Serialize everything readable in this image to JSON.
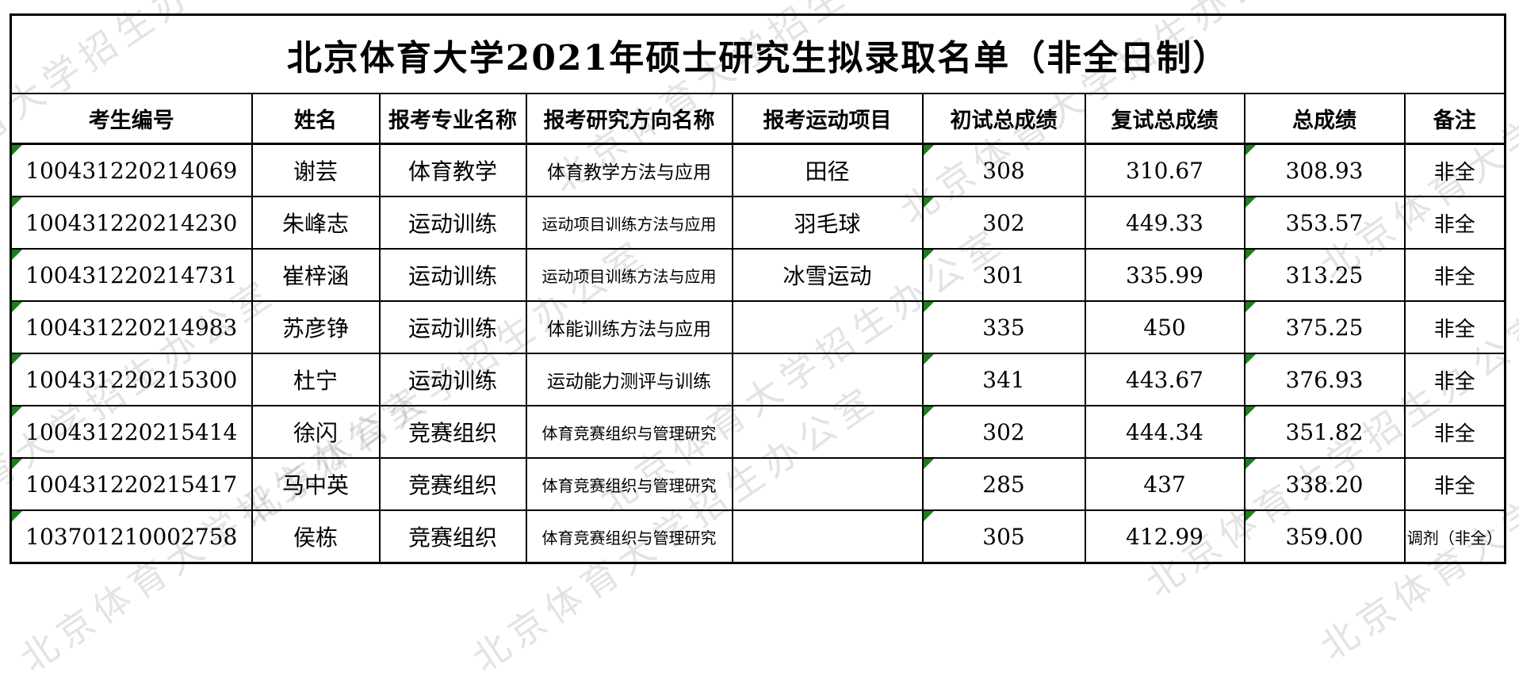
{
  "title": "北京体育大学2021年硕士研究生拟录取名单（非全日制）",
  "watermark_text": "北京体育大学招生办公室",
  "colors": {
    "flag_green": "#1f7d1f",
    "border_black": "#000000",
    "watermark_gray": "rgba(80,80,80,0.16)"
  },
  "table": {
    "columns": [
      "考生编号",
      "姓名",
      "报考专业名称",
      "报考研究方向名称",
      "报考运动项目",
      "初试总成绩",
      "复试总成绩",
      "总成绩",
      "备注"
    ],
    "flag_columns": [
      0,
      5,
      7
    ],
    "rows": [
      [
        "100431220214069",
        "谢芸",
        "体育教学",
        "体育教学方法与应用",
        "田径",
        "308",
        "310.67",
        "308.93",
        "非全"
      ],
      [
        "100431220214230",
        "朱峰志",
        "运动训练",
        "运动项目训练方法与应用",
        "羽毛球",
        "302",
        "449.33",
        "353.57",
        "非全"
      ],
      [
        "100431220214731",
        "崔梓涵",
        "运动训练",
        "运动项目训练方法与应用",
        "冰雪运动",
        "301",
        "335.99",
        "313.25",
        "非全"
      ],
      [
        "100431220214983",
        "苏彦铮",
        "运动训练",
        "体能训练方法与应用",
        "",
        "335",
        "450",
        "375.25",
        "非全"
      ],
      [
        "100431220215300",
        "杜宁",
        "运动训练",
        "运动能力测评与训练",
        "",
        "341",
        "443.67",
        "376.93",
        "非全"
      ],
      [
        "100431220215414",
        "徐闪",
        "竞赛组织",
        "体育竞赛组织与管理研究",
        "",
        "302",
        "444.34",
        "351.82",
        "非全"
      ],
      [
        "100431220215417",
        "马中英",
        "竞赛组织",
        "体育竞赛组织与管理研究",
        "",
        "285",
        "437",
        "338.20",
        "非全"
      ],
      [
        "103701210002758",
        "侯栋",
        "竞赛组织",
        "体育竞赛组织与管理研究",
        "",
        "305",
        "412.99",
        "359.00",
        "调剂（非全）"
      ]
    ]
  }
}
